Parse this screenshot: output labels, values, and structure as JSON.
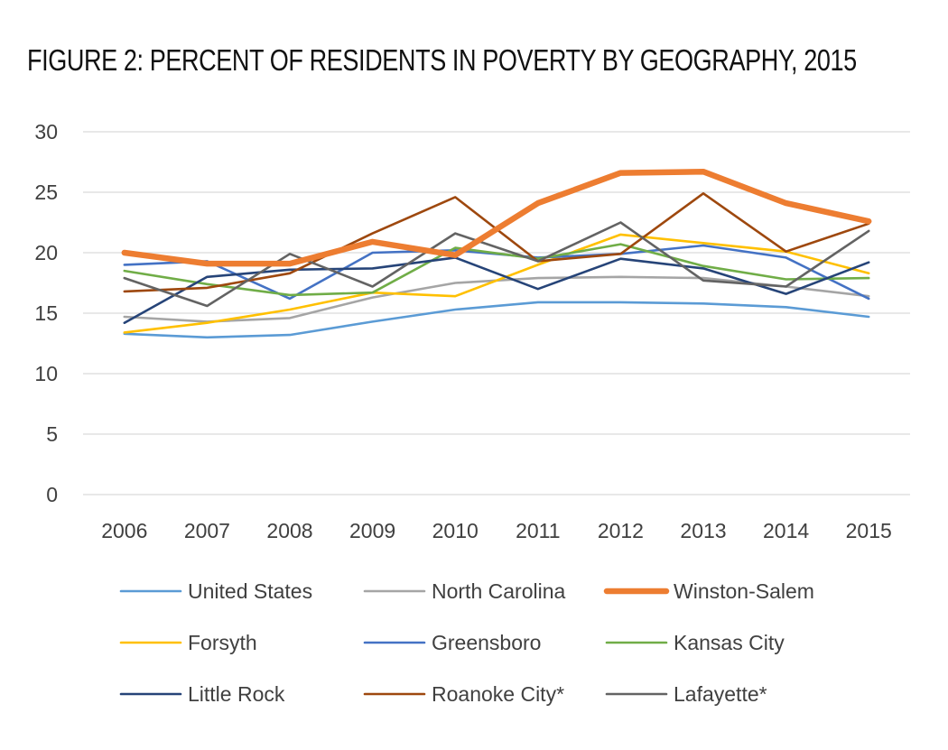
{
  "chart_data": {
    "type": "line",
    "title": "FIGURE 2: PERCENT OF RESIDENTS IN POVERTY BY GEOGRAPHY, 2015",
    "xlabel": "",
    "ylabel": "",
    "x": [
      "2006",
      "2007",
      "2008",
      "2009",
      "2010",
      "2011",
      "2012",
      "2013",
      "2014",
      "2015"
    ],
    "ylim": [
      0,
      30
    ],
    "yticks": [
      0,
      5,
      10,
      15,
      20,
      25,
      30
    ],
    "grid": true,
    "legend_position": "bottom",
    "series": [
      {
        "name": "United States",
        "color": "#5b9bd5",
        "emphasis": false,
        "values": [
          13.3,
          13.0,
          13.2,
          14.3,
          15.3,
          15.9,
          15.9,
          15.8,
          15.5,
          14.7
        ]
      },
      {
        "name": "North Carolina",
        "color": "#a5a5a5",
        "emphasis": false,
        "values": [
          14.7,
          14.3,
          14.6,
          16.3,
          17.5,
          17.9,
          18.0,
          17.9,
          17.2,
          16.4
        ]
      },
      {
        "name": "Winston-Salem",
        "color": "#ed7d31",
        "emphasis": true,
        "values": [
          20.0,
          19.1,
          19.1,
          20.9,
          19.8,
          24.1,
          26.6,
          26.7,
          24.1,
          22.6
        ]
      },
      {
        "name": "Forsyth",
        "color": "#ffc000",
        "emphasis": false,
        "values": [
          13.4,
          14.2,
          15.3,
          16.7,
          16.4,
          19.0,
          21.5,
          20.8,
          20.1,
          18.3
        ]
      },
      {
        "name": "Greensboro",
        "color": "#4472c4",
        "emphasis": false,
        "values": [
          19.0,
          19.3,
          16.2,
          20.0,
          20.2,
          19.6,
          19.9,
          20.6,
          19.6,
          16.2
        ]
      },
      {
        "name": "Kansas City",
        "color": "#70ad47",
        "emphasis": false,
        "values": [
          18.5,
          17.4,
          16.5,
          16.7,
          20.4,
          19.5,
          20.7,
          18.9,
          17.8,
          17.9
        ]
      },
      {
        "name": "Little Rock",
        "color": "#264478",
        "emphasis": false,
        "values": [
          14.2,
          18.0,
          18.6,
          18.7,
          19.6,
          17.0,
          19.5,
          18.7,
          16.6,
          19.2
        ]
      },
      {
        "name": "Roanoke City*",
        "color": "#9e480e",
        "emphasis": false,
        "values": [
          16.8,
          17.1,
          18.3,
          21.6,
          24.6,
          19.3,
          19.9,
          24.9,
          20.1,
          22.4
        ]
      },
      {
        "name": "Lafayette*",
        "color": "#636363",
        "emphasis": false,
        "values": [
          17.9,
          15.6,
          19.9,
          17.2,
          21.6,
          19.3,
          22.5,
          17.7,
          17.2,
          21.8
        ]
      }
    ]
  }
}
